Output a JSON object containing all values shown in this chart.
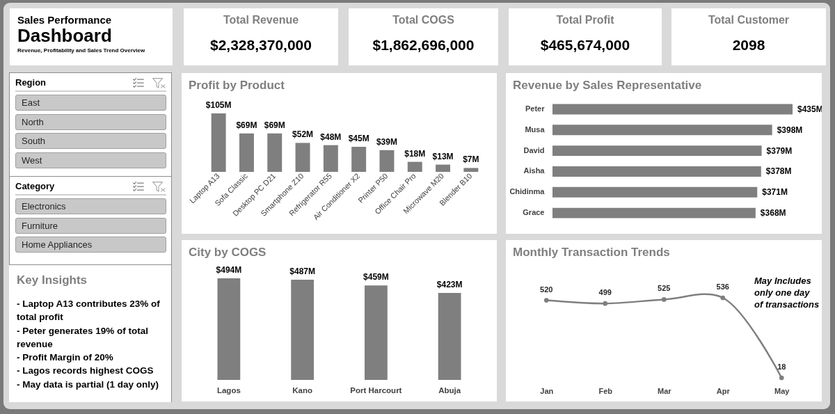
{
  "chart_data": [
    {
      "type": "other",
      "title": "Sales Performance Dashboard",
      "subtitle": "Revenue, Profitability and Sales Trend Overview"
    },
    {
      "type": "other",
      "title": "Total Revenue",
      "annotations": [
        "$2,328,370,000"
      ]
    },
    {
      "type": "other",
      "title": "Total COGS",
      "annotations": [
        "$1,862,696,000"
      ]
    },
    {
      "type": "other",
      "title": "Total Profit",
      "annotations": [
        "$465,674,000"
      ]
    },
    {
      "type": "other",
      "title": "Total Customer",
      "annotations": [
        "2098"
      ]
    },
    {
      "type": "other",
      "title": "Region",
      "annotations": [
        "East",
        "North",
        "South",
        "West"
      ]
    },
    {
      "type": "other",
      "title": "Category",
      "annotations": [
        "Electronics",
        "Furniture",
        "Home Appliances"
      ]
    },
    {
      "type": "other",
      "title": "Key Insights",
      "annotations": [
        "- Laptop A13 contributes 23% of total profit",
        "- Peter generates 19% of total revenue",
        "- Profit Margin of 20%",
        "- Lagos records highest COGS",
        "- May data is partial (1 day only)"
      ]
    },
    {
      "type": "bar",
      "title": "Profit by Product",
      "categories": [
        "Laptop A13",
        "Sofa Classic",
        "Desktop PC D21",
        "Smartphone Z10",
        "Refrigerator R55",
        "Air Conditioner X2",
        "Printer P50",
        "Office Chair Pro",
        "Microwave M20",
        "Blender B10"
      ],
      "values": [
        105,
        69,
        69,
        52,
        48,
        45,
        39,
        18,
        13,
        7
      ],
      "value_labels": [
        "$105M",
        "$69M",
        "$69M",
        "$52M",
        "$48M",
        "$45M",
        "$39M",
        "$18M",
        "$13M",
        "$7M"
      ],
      "color": "#7f7f7f",
      "tick_labels": "x"
    },
    {
      "type": "bar",
      "orientation": "horizontal",
      "title": "Revenue by Sales Representative",
      "categories": [
        "Peter",
        "Musa",
        "David",
        "Aisha",
        "Chidinma",
        "Grace"
      ],
      "values": [
        435,
        398,
        379,
        378,
        371,
        368
      ],
      "value_labels": [
        "$435M",
        "$398M",
        "$379M",
        "$378M",
        "$371M",
        "$368M"
      ],
      "color": "#7f7f7f",
      "tick_labels": "y"
    },
    {
      "type": "bar",
      "title": "City by COGS",
      "categories": [
        "Lagos",
        "Kano",
        "Port Harcourt",
        "Abuja"
      ],
      "values": [
        494,
        487,
        459,
        423
      ],
      "value_labels": [
        "$494M",
        "$487M",
        "$459M",
        "$423M"
      ],
      "color": "#7f7f7f",
      "tick_labels": "x"
    },
    {
      "type": "line",
      "title": "Monthly Transaction Trends",
      "categories": [
        "Jan",
        "Feb",
        "Mar",
        "Apr",
        "May"
      ],
      "values": [
        520,
        499,
        525,
        536,
        18
      ],
      "data_labels": true,
      "color": "#7f7f7f",
      "marker": "circle",
      "tick_labels": "x",
      "annotations": [
        "May Includes only one day of transactions"
      ]
    }
  ]
}
